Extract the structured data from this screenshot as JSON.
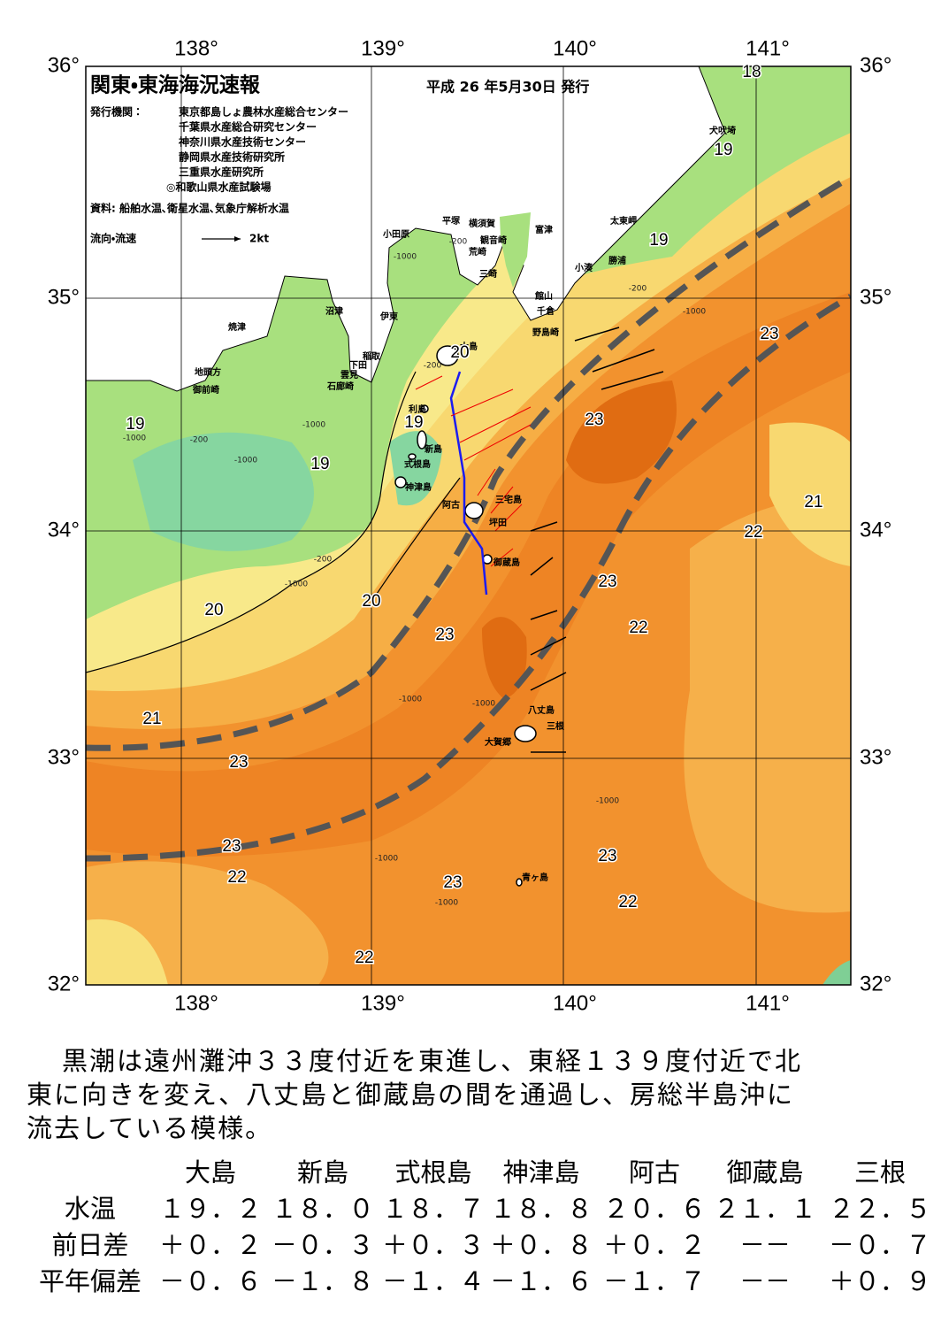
{
  "header": {
    "title": "関東・東海海況速報",
    "date": "平成 26 年5月30日 発行",
    "issuer_label": "発行機関：",
    "issuers": [
      "東京都島しょ農林水産総合センター",
      "千葉県水産総合研究センター",
      "神奈川県水産技術センター",
      "静岡県水産技術研究所",
      "三重県水産研究所",
      "◎和歌山県水産試験場"
    ],
    "source": "資料: 船舶水温､衛星水温､気象庁解析水温",
    "legend": "流向・流速",
    "legend_speed": "2kt"
  },
  "map": {
    "lon_labels": [
      "138°",
      "139°",
      "140°",
      "141°"
    ],
    "lat_labels": [
      "36°",
      "35°",
      "34°",
      "33°",
      "32°"
    ],
    "places": [
      "犬吠埼",
      "太東岬",
      "勝浦",
      "小湊",
      "富津",
      "横須賀",
      "観音崎",
      "荒崎",
      "三崎",
      "館山",
      "千倉",
      "野島崎",
      "平塚",
      "小田原",
      "沼津",
      "伊東",
      "焼津",
      "稲取",
      "下田",
      "雲見",
      "石廊崎",
      "地頭方",
      "御前崎",
      "大島",
      "利島",
      "新島",
      "式根島",
      "神津島",
      "三宅島",
      "阿古",
      "坪田",
      "御蔵島",
      "八丈島",
      "三根",
      "大賀郷",
      "青ヶ島"
    ],
    "temperature_labels": [
      18,
      19,
      19,
      23,
      23,
      19,
      19,
      19,
      21,
      22,
      23,
      20,
      20,
      22,
      23,
      21,
      23,
      23,
      22,
      23,
      23,
      22,
      22,
      20
    ],
    "depth_labels": [
      "-200",
      "-200",
      "-200",
      "-200",
      "-200",
      "-1000",
      "-1000",
      "-1000",
      "-1000",
      "-1000",
      "-1000",
      "-1000",
      "-1000",
      "-1000",
      "-1000",
      "-1000"
    ]
  },
  "summary": {
    "lines": [
      "黒潮は遠州灘沖３３度付近を東進し、東経１３９度付近で北",
      "東に向きを変え、八丈島と御蔵島の間を通過し、房総半島沖に",
      "流去している模様。"
    ]
  },
  "table": {
    "header": [
      "大島",
      "新島",
      "式根島",
      "神津島",
      "阿古",
      "御蔵島",
      "三根"
    ],
    "rows": [
      [
        "水温",
        "１９．２",
        "１８．０",
        "１８．７",
        "１８．８",
        "２０．６",
        "２１．１",
        "２２．５"
      ],
      [
        "前日差",
        "＋０．２",
        "－０．３",
        "＋０．３",
        "＋０．８",
        "＋０．２",
        "－－",
        "－０．７"
      ],
      [
        "平年偏差",
        "－０．６",
        "－１．８",
        "－１．４",
        "－１．６",
        "－１．７",
        "－－",
        "＋０．９"
      ]
    ]
  }
}
